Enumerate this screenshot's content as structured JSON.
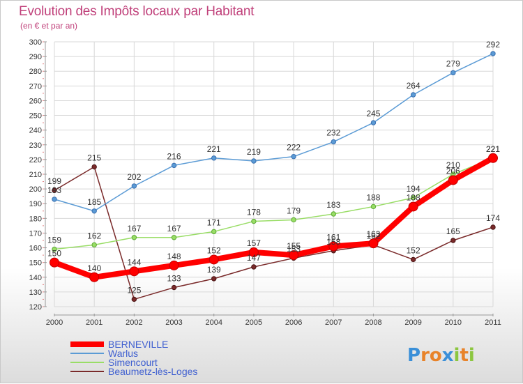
{
  "header": {
    "title": "Evolution des Impôts locaux par Habitant",
    "subtitle": "(en € et par an)"
  },
  "watermark": "Proxiti",
  "chart_data": {
    "type": "line",
    "x": [
      "2000",
      "2001",
      "2002",
      "2003",
      "2004",
      "2005",
      "2006",
      "2007",
      "2008",
      "2009",
      "2010",
      "2011"
    ],
    "ylim": [
      120,
      300
    ],
    "yticks": [
      120,
      130,
      140,
      150,
      160,
      170,
      180,
      190,
      200,
      210,
      220,
      230,
      240,
      250,
      260,
      270,
      280,
      290,
      300
    ],
    "grid": true,
    "legend_position": "bottom-left",
    "series": [
      {
        "name": "BERNEVILLE",
        "color": "#ff0000",
        "values": [
          150,
          140,
          144,
          148,
          152,
          157,
          155,
          161,
          163,
          188,
          206,
          221
        ]
      },
      {
        "name": "Warlus",
        "color": "#5b9bd5",
        "values": [
          193,
          185,
          202,
          216,
          221,
          219,
          222,
          232,
          245,
          264,
          279,
          292
        ]
      },
      {
        "name": "Simencourt",
        "color": "#99dd66",
        "values": [
          159,
          162,
          167,
          167,
          171,
          178,
          179,
          183,
          188,
          194,
          210,
          221
        ]
      },
      {
        "name": "Beaumetz-lès-Loges",
        "color": "#7a2a2a",
        "values": [
          199,
          215,
          125,
          133,
          139,
          147,
          153,
          158,
          162,
          152,
          165,
          174
        ]
      }
    ]
  }
}
